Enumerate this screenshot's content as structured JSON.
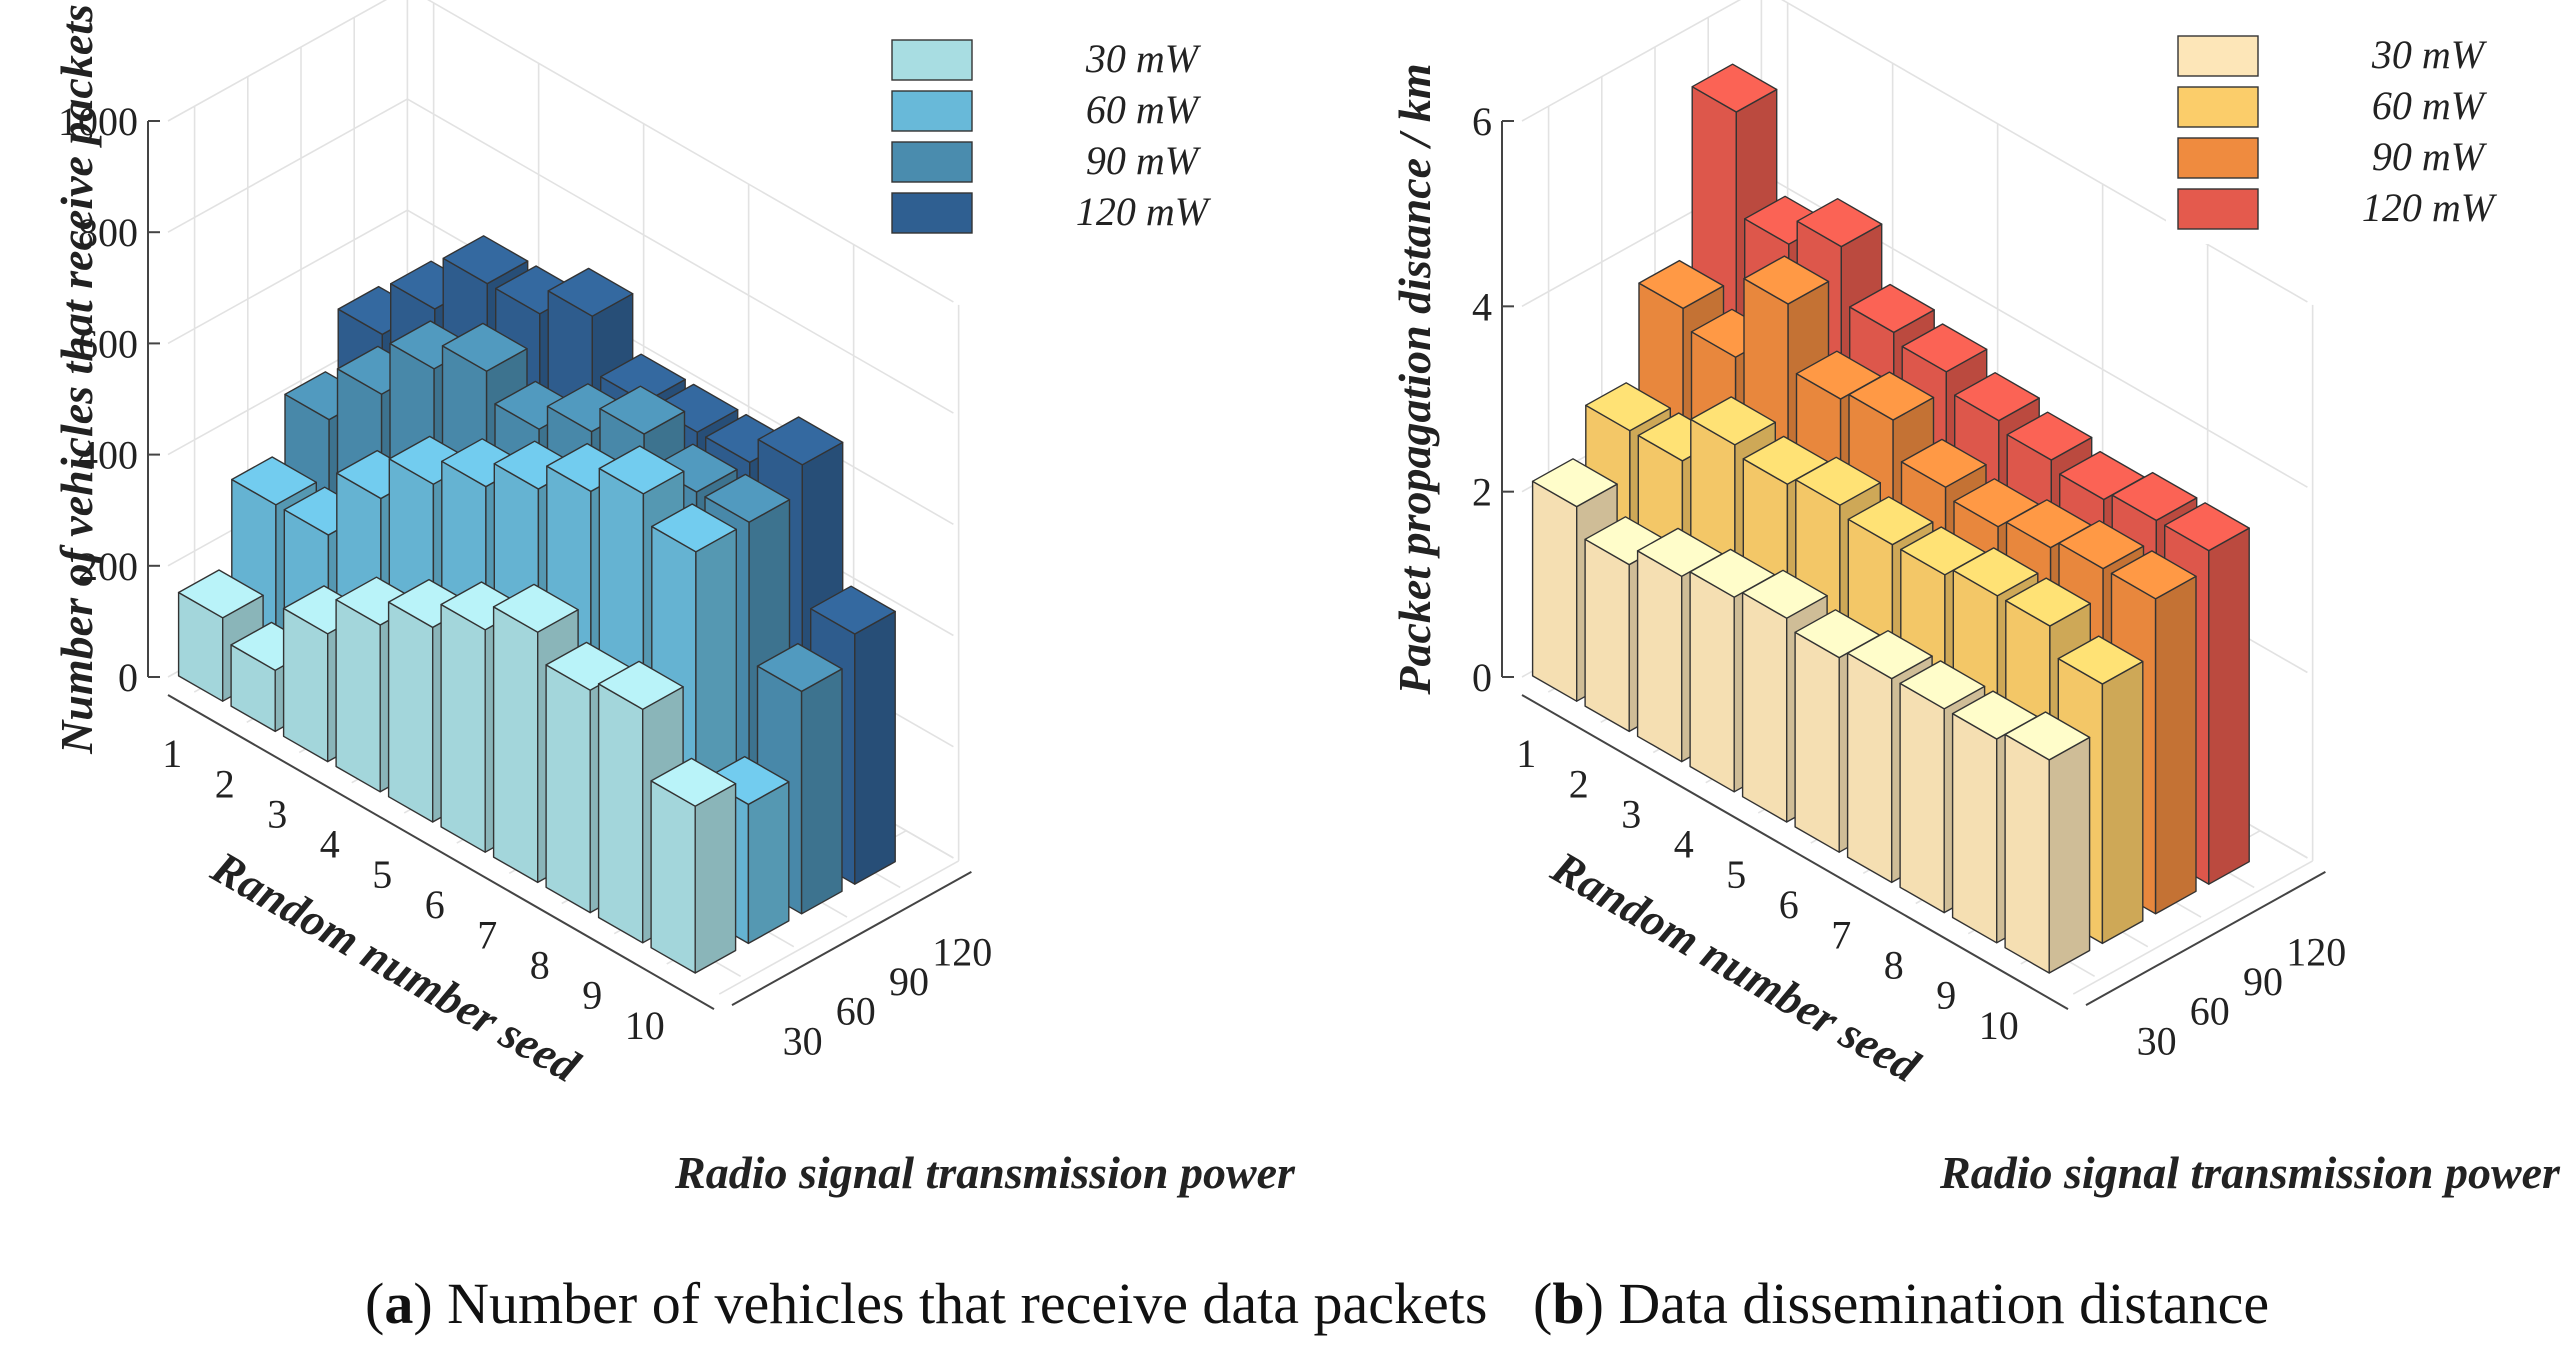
{
  "chart_data": [
    {
      "type": "bar3d",
      "panel": "a",
      "ylabel": "Number of vehicles that receive packets",
      "xlabel": "Random number seed",
      "zlabel": "Radio signal transmission power",
      "seeds": [
        "1",
        "2",
        "3",
        "4",
        "5",
        "6",
        "7",
        "8",
        "9",
        "10"
      ],
      "powers": [
        "30",
        "60",
        "90",
        "120"
      ],
      "zlim": [
        0,
        1000
      ],
      "zticks": [
        "0",
        "200",
        "400",
        "600",
        "800",
        "1000"
      ],
      "legend": [
        "30 mW",
        "60 mW",
        "90 mW",
        "120 mW"
      ],
      "colors": [
        "#a8dde2",
        "#68b9d9",
        "#4a8cae",
        "#2f5f91"
      ],
      "series": [
        {
          "name": "30 mW",
          "values": [
            150,
            110,
            230,
            300,
            350,
            400,
            450,
            400,
            420,
            300
          ]
        },
        {
          "name": "60 mW",
          "values": [
            300,
            300,
            420,
            500,
            550,
            600,
            650,
            700,
            650,
            250
          ]
        },
        {
          "name": "90 mW",
          "values": [
            400,
            500,
            600,
            650,
            600,
            650,
            700,
            650,
            650,
            400
          ]
        },
        {
          "name": "120 mW",
          "values": [
            500,
            600,
            700,
            700,
            750,
            650,
            650,
            650,
            700,
            450
          ]
        }
      ],
      "caption_label": "a",
      "caption_text": "Number of vehicles that receive data packets"
    },
    {
      "type": "bar3d",
      "panel": "b",
      "ylabel": "Packet propagation distance / km",
      "xlabel": "Random number seed",
      "zlabel": "Radio signal transmission power",
      "seeds": [
        "1",
        "2",
        "3",
        "4",
        "5",
        "6",
        "7",
        "8",
        "9",
        "10"
      ],
      "powers": [
        "30",
        "60",
        "90",
        "120"
      ],
      "zlim": [
        0,
        6
      ],
      "zticks": [
        "0",
        "2",
        "4",
        "6"
      ],
      "legend": [
        "30 mW",
        "60 mW",
        "90 mW",
        "120 mW"
      ],
      "colors": [
        "#fde6b8",
        "#fbcd6a",
        "#ef8b3f",
        "#e45a4d"
      ],
      "series": [
        {
          "name": "30 mW",
          "values": [
            2.1,
            1.8,
            2.0,
            2.1,
            2.2,
            2.1,
            2.2,
            2.2,
            2.2,
            2.3
          ]
        },
        {
          "name": "60 mW",
          "values": [
            2.6,
            2.6,
            3.1,
            3.0,
            3.1,
            3.0,
            3.0,
            3.1,
            3.1,
            2.8
          ]
        },
        {
          "name": "90 mW",
          "values": [
            3.6,
            3.4,
            4.3,
            3.6,
            3.7,
            3.3,
            3.2,
            3.3,
            3.4,
            3.4
          ]
        },
        {
          "name": "120 mW",
          "values": [
            5.4,
            4.3,
            4.6,
            4.0,
            3.9,
            3.7,
            3.6,
            3.5,
            3.6,
            3.6
          ]
        }
      ],
      "caption_label": "b",
      "caption_text": "Data dissemination distance"
    }
  ]
}
